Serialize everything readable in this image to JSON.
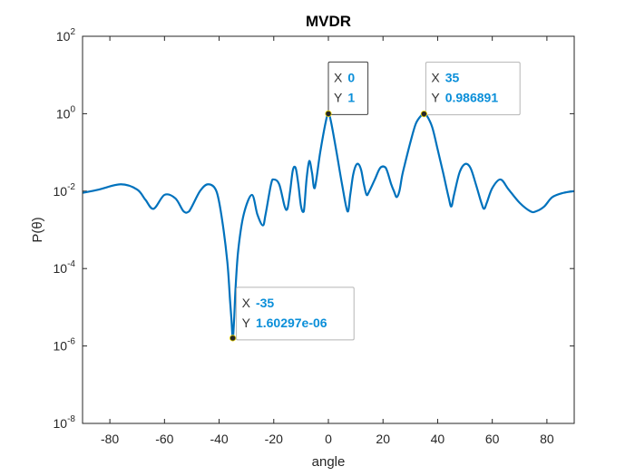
{
  "chart_data": {
    "type": "line",
    "title": "MVDR",
    "xlabel": "angle",
    "ylabel": "P(θ)",
    "yscale": "log",
    "xlim": [
      -90,
      90
    ],
    "ylim": [
      1e-08,
      100
    ],
    "grid": false,
    "x_ticks": [
      "-80",
      "-60",
      "-40",
      "-20",
      "0",
      "20",
      "40",
      "60",
      "80"
    ],
    "y_ticks": [
      {
        "base": "10",
        "exp": "2"
      },
      {
        "base": "10",
        "exp": "0"
      },
      {
        "base": "10",
        "exp": "-2"
      },
      {
        "base": "10",
        "exp": "-4"
      },
      {
        "base": "10",
        "exp": "-6"
      },
      {
        "base": "10",
        "exp": "-8"
      }
    ],
    "line_color": "#0072bd",
    "series": [
      {
        "x": [
          -90,
          -84,
          -76,
          -70,
          -67,
          -64,
          -60,
          -56,
          -53,
          -51,
          -47,
          -44,
          -41,
          -39,
          -37,
          -36,
          -35.5,
          -35,
          -34.5,
          -34,
          -33,
          -31,
          -28,
          -26,
          -24,
          -23,
          -21,
          -20,
          -18,
          -16,
          -15,
          -14,
          -13,
          -12,
          -11,
          -10,
          -9,
          -8,
          -7,
          -6,
          -5,
          -3,
          -1,
          0,
          1,
          3,
          5,
          7,
          8,
          9,
          10,
          11,
          12,
          13,
          14,
          15,
          17,
          19,
          21,
          23,
          24,
          25,
          26,
          27,
          28,
          30,
          32,
          34,
          35,
          36,
          38,
          40,
          42,
          44,
          45,
          46,
          48,
          50,
          52,
          54,
          56,
          57,
          58,
          60,
          63,
          66,
          70,
          74,
          76,
          79,
          82,
          86,
          90
        ],
        "y": [
          0.009,
          0.011,
          0.015,
          0.011,
          0.006,
          0.0035,
          0.008,
          0.0065,
          0.003,
          0.003,
          0.01,
          0.015,
          0.01,
          0.002,
          0.00015,
          1.5e-05,
          5e-06,
          1.6e-06,
          5e-06,
          3e-05,
          0.0003,
          0.0025,
          0.008,
          0.0025,
          0.0013,
          0.0025,
          0.015,
          0.02,
          0.015,
          0.004,
          0.0035,
          0.01,
          0.035,
          0.04,
          0.015,
          0.004,
          0.003,
          0.02,
          0.06,
          0.03,
          0.012,
          0.1,
          0.6,
          1,
          0.6,
          0.1,
          0.015,
          0.003,
          0.008,
          0.025,
          0.045,
          0.05,
          0.035,
          0.015,
          0.008,
          0.01,
          0.02,
          0.04,
          0.04,
          0.015,
          0.01,
          0.007,
          0.01,
          0.025,
          0.05,
          0.18,
          0.55,
          0.9,
          0.986891,
          0.9,
          0.45,
          0.12,
          0.03,
          0.007,
          0.004,
          0.008,
          0.03,
          0.05,
          0.04,
          0.015,
          0.005,
          0.0035,
          0.005,
          0.012,
          0.02,
          0.011,
          0.005,
          0.003,
          0.003,
          0.004,
          0.007,
          0.009,
          0.01
        ]
      }
    ],
    "datatips": [
      {
        "x": -35,
        "y": 1.6e-06,
        "x_key": "X",
        "y_key": "Y",
        "x_text": "-35",
        "y_text": "1.60297e-06"
      },
      {
        "x": 0,
        "y": 1,
        "x_key": "X",
        "y_key": "Y",
        "x_text": "0",
        "y_text": "1"
      },
      {
        "x": 35,
        "y": 0.986891,
        "x_key": "X",
        "y_key": "Y",
        "x_text": "35",
        "y_text": "0.986891"
      }
    ]
  }
}
